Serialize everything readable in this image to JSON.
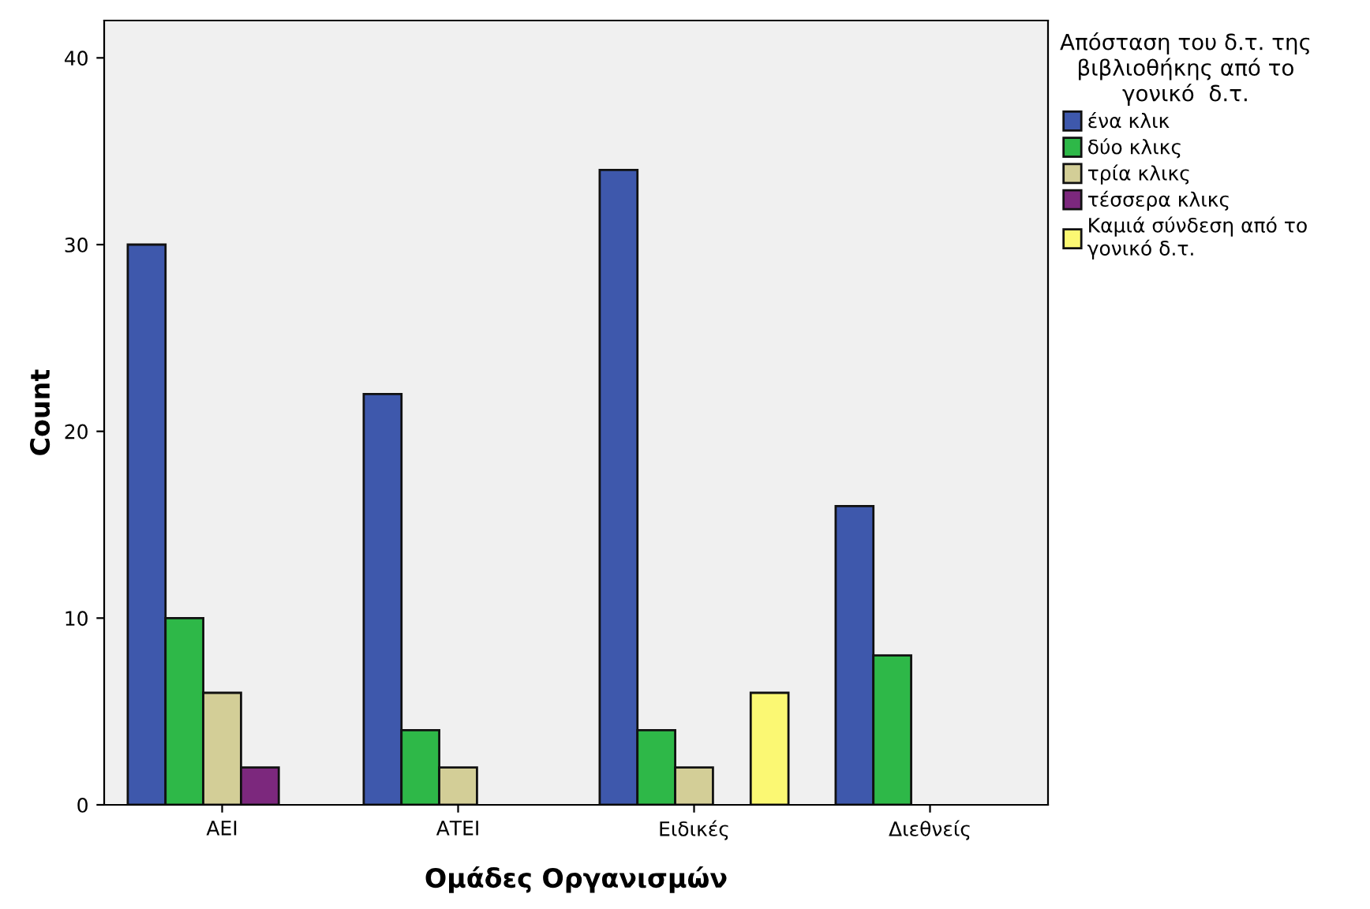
{
  "chart_data": {
    "type": "bar",
    "xlabel": "Ομάδες Οργανισμών",
    "ylabel": "Count",
    "legend_title": "Απόσταση του δ.τ. της\nβιβλιοθήκης από το\nγονικό  δ.τ.",
    "categories": [
      "ΑΕΙ",
      "ΑΤΕΙ",
      "Ειδικές",
      "Διεθνείς"
    ],
    "series": [
      {
        "name": "ένα κλικ",
        "color": "#3e58ac",
        "values": [
          30,
          22,
          34,
          16
        ]
      },
      {
        "name": "δύο κλικς",
        "color": "#2eb848",
        "values": [
          10,
          4,
          4,
          8
        ]
      },
      {
        "name": "τρία κλικς",
        "color": "#d3ce97",
        "values": [
          6,
          2,
          2,
          null
        ]
      },
      {
        "name": "τέσσερα κλικς",
        "color": "#7c287d",
        "values": [
          2,
          null,
          null,
          null
        ]
      },
      {
        "name": "Καμιά σύνδεση από το\nγονικό δ.τ.",
        "color": "#fbf873",
        "values": [
          null,
          null,
          6,
          null
        ]
      }
    ],
    "ylim": [
      0,
      42
    ],
    "yticks": [
      0,
      10,
      20,
      30,
      40
    ],
    "grid": false,
    "legend": "right"
  }
}
